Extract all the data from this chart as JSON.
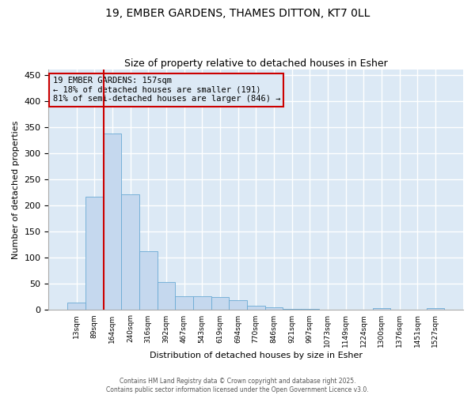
{
  "title_line1": "19, EMBER GARDENS, THAMES DITTON, KT7 0LL",
  "title_line2": "Size of property relative to detached houses in Esher",
  "xlabel": "Distribution of detached houses by size in Esher",
  "ylabel": "Number of detached properties",
  "categories": [
    "13sqm",
    "89sqm",
    "164sqm",
    "240sqm",
    "316sqm",
    "392sqm",
    "467sqm",
    "543sqm",
    "619sqm",
    "694sqm",
    "770sqm",
    "846sqm",
    "921sqm",
    "997sqm",
    "1073sqm",
    "1149sqm",
    "1224sqm",
    "1300sqm",
    "1376sqm",
    "1451sqm",
    "1527sqm"
  ],
  "values": [
    15,
    217,
    338,
    222,
    113,
    54,
    27,
    26,
    25,
    19,
    8,
    5,
    2,
    2,
    1,
    1,
    1,
    4,
    1,
    1,
    4
  ],
  "bar_color": "#c5d8ee",
  "bar_edgecolor": "#6aaad4",
  "plot_bg_color": "#dce9f5",
  "fig_bg_color": "#ffffff",
  "grid_color": "#ffffff",
  "vline_color": "#cc0000",
  "vline_x_index": 2,
  "annotation_text": "19 EMBER GARDENS: 157sqm\n← 18% of detached houses are smaller (191)\n81% of semi-detached houses are larger (846) →",
  "annotation_box_edgecolor": "#cc0000",
  "ylim": [
    0,
    460
  ],
  "yticks": [
    0,
    50,
    100,
    150,
    200,
    250,
    300,
    350,
    400,
    450
  ],
  "footer_line1": "Contains HM Land Registry data © Crown copyright and database right 2025.",
  "footer_line2": "Contains public sector information licensed under the Open Government Licence v3.0."
}
